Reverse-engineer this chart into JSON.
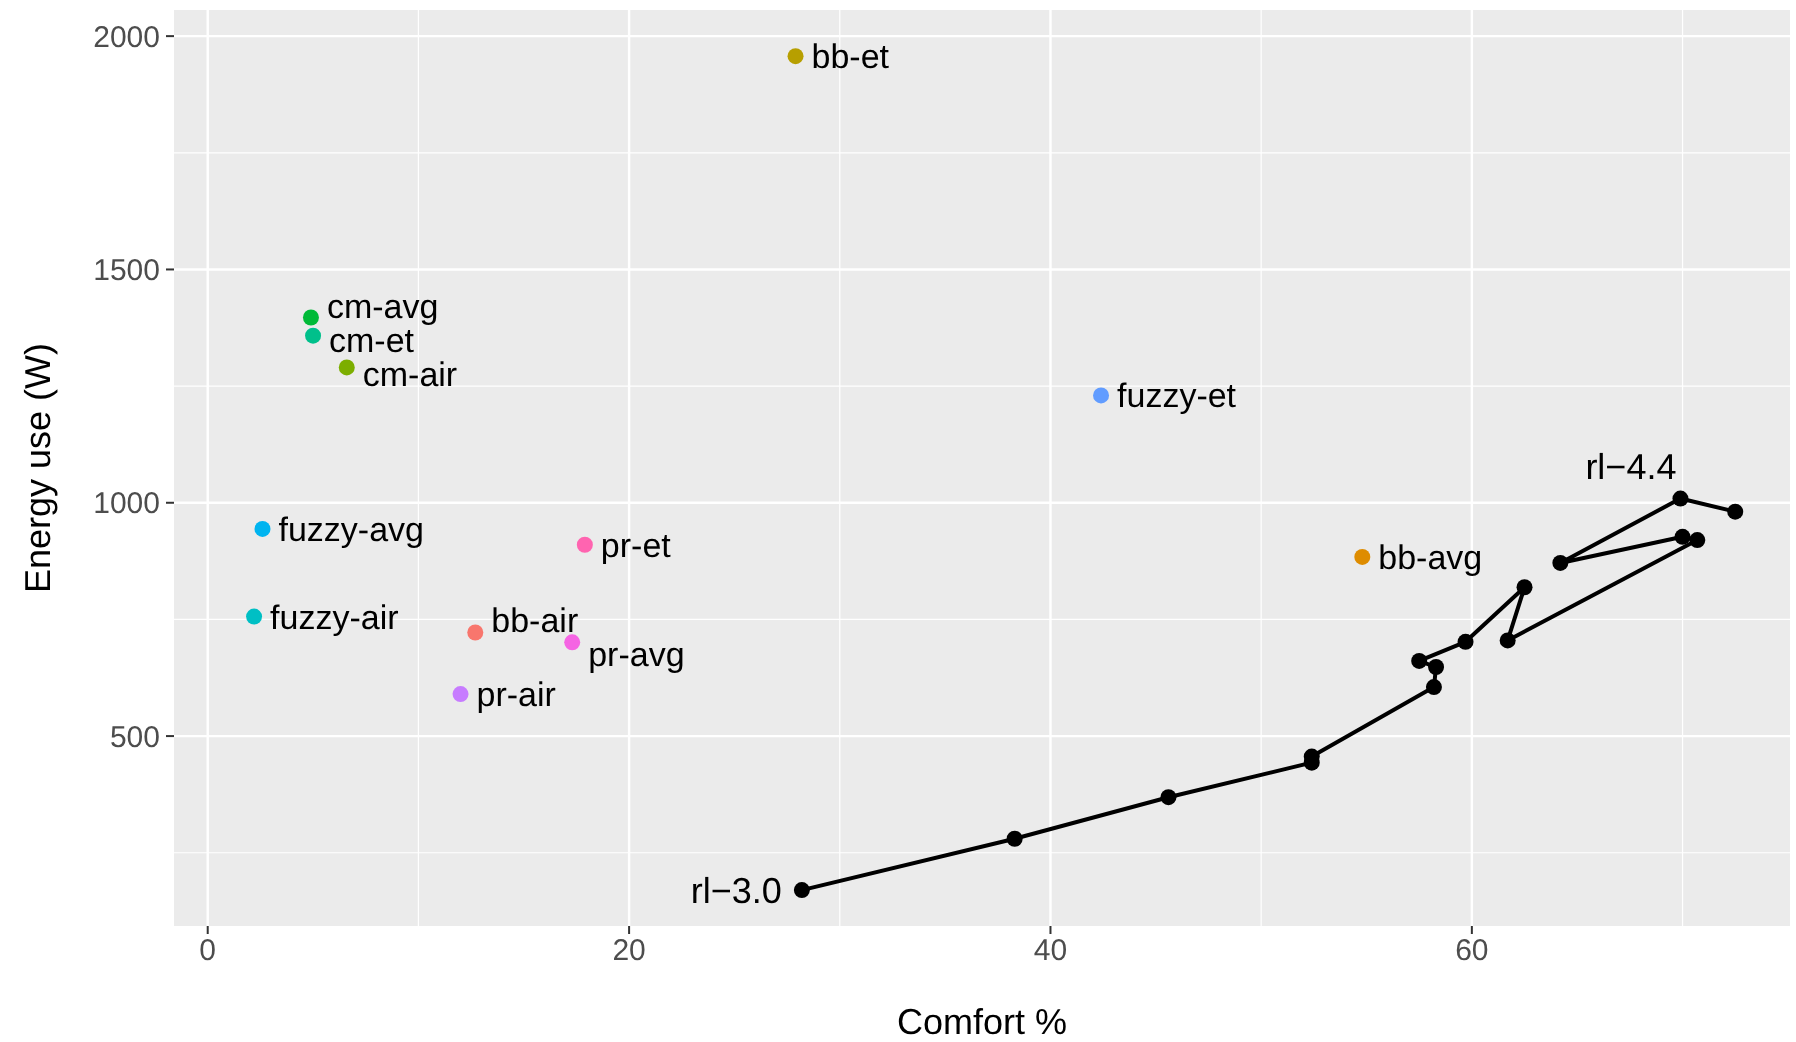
{
  "chart_data": {
    "type": "scatter",
    "xlabel": "Comfort %",
    "ylabel": "Energy use (W)",
    "xlim": [
      -1.6,
      75.1
    ],
    "ylim": [
      93,
      2056
    ],
    "xticks": [
      0,
      {
        "value": 10,
        "label": null
      },
      20,
      {
        "value": 30,
        "label": null
      },
      40,
      {
        "value": 50,
        "label": null
      },
      60,
      {
        "value": 70,
        "label": null
      }
    ],
    "yticks": [
      {
        "value": 250,
        "label": null
      },
      500,
      {
        "value": 750,
        "label": null
      },
      1000,
      {
        "value": 1250,
        "label": null
      },
      1500,
      {
        "value": 1750,
        "label": null
      },
      2000
    ],
    "grid": true,
    "marker": "circle",
    "series": [
      {
        "name": "bb-air",
        "color": "#f8766d",
        "x": [
          12.7
        ],
        "values": [
          722
        ]
      },
      {
        "name": "bb-avg",
        "color": "#de8c00",
        "x": [
          54.8
        ],
        "values": [
          884
        ]
      },
      {
        "name": "bb-et",
        "color": "#b79f00",
        "x": [
          27.9
        ],
        "values": [
          1957
        ]
      },
      {
        "name": "cm-air",
        "color": "#7cae00",
        "x": [
          6.6
        ],
        "values": [
          1290
        ]
      },
      {
        "name": "cm-avg",
        "color": "#00ba38",
        "x": [
          4.9
        ],
        "values": [
          1397
        ]
      },
      {
        "name": "cm-et",
        "color": "#00c08b",
        "x": [
          5.0
        ],
        "values": [
          1358
        ]
      },
      {
        "name": "fuzzy-air",
        "color": "#00bfc4",
        "x": [
          2.2
        ],
        "values": [
          756
        ]
      },
      {
        "name": "fuzzy-avg",
        "color": "#00b4f0",
        "x": [
          2.6
        ],
        "values": [
          944
        ]
      },
      {
        "name": "fuzzy-et",
        "color": "#619cff",
        "x": [
          42.4
        ],
        "values": [
          1230
        ]
      },
      {
        "name": "pr-air",
        "color": "#c77cff",
        "x": [
          12.0
        ],
        "values": [
          590
        ]
      },
      {
        "name": "pr-avg",
        "color": "#f564e3",
        "x": [
          17.3
        ],
        "values": [
          701
        ]
      },
      {
        "name": "pr-et",
        "color": "#ff64b0",
        "x": [
          17.9
        ],
        "values": [
          910
        ]
      },
      {
        "type": "line",
        "color": "#000000",
        "x": [
          28.2,
          38.3,
          45.6,
          52.4,
          52.4,
          58.2,
          58.3,
          57.5,
          59.7,
          62.5,
          61.7,
          70.7,
          70.0,
          64.2,
          69.9,
          72.5
        ],
        "values": [
          170,
          280,
          369,
          443,
          456,
          605,
          648,
          661,
          702,
          819,
          705,
          920,
          927,
          871,
          1009,
          981
        ]
      }
    ],
    "annotations": [
      {
        "text": "rl−3.0",
        "x": 28.2,
        "y": 170
      },
      {
        "text": "rl−4.4",
        "x": 69.9,
        "y": 1009
      }
    ]
  }
}
